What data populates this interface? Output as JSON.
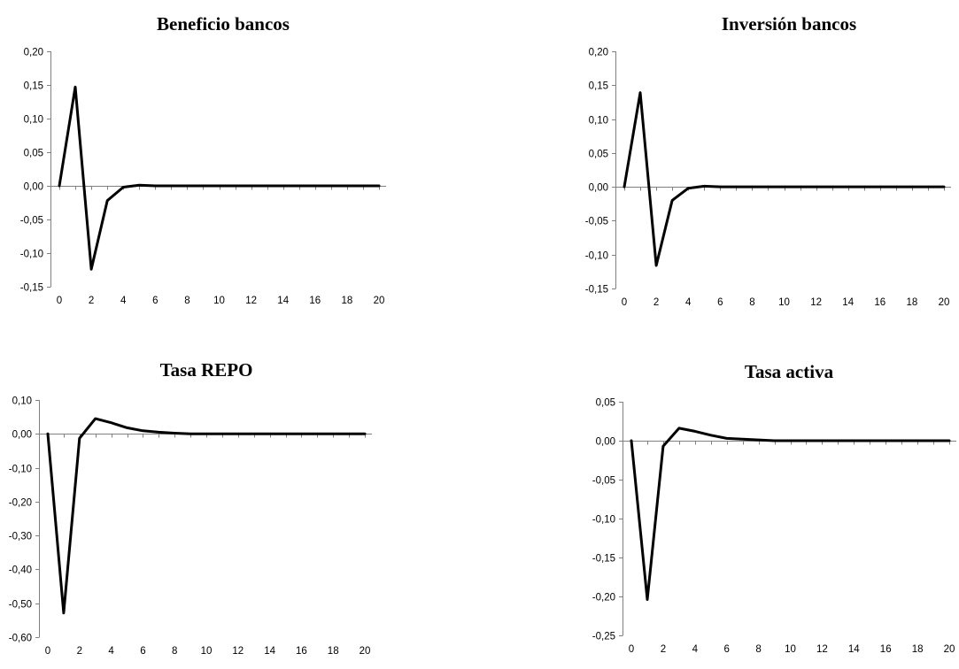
{
  "chart_data": [
    {
      "type": "line",
      "title": "Beneficio bancos",
      "xlabel": "",
      "ylabel": "",
      "x": [
        0,
        1,
        2,
        3,
        4,
        5,
        6,
        7,
        8,
        9,
        10,
        11,
        12,
        13,
        14,
        15,
        16,
        17,
        18,
        19,
        20
      ],
      "x_ticks": [
        0,
        2,
        4,
        6,
        8,
        10,
        12,
        14,
        16,
        18,
        20
      ],
      "ylim": [
        -0.15,
        0.2
      ],
      "y_ticks": [
        "0,20",
        "0,15",
        "0,10",
        "0,05",
        "0,00",
        "-0,05",
        "-0,10",
        "-0,15"
      ],
      "grid": false,
      "series": [
        {
          "values": [
            0,
            0.147,
            -0.124,
            -0.022,
            -0.002,
            0.001,
            0,
            0,
            0,
            0,
            0,
            0,
            0,
            0,
            0,
            0,
            0,
            0,
            0,
            0,
            0
          ]
        }
      ]
    },
    {
      "type": "line",
      "title": "Inversión bancos",
      "xlabel": "",
      "ylabel": "",
      "x": [
        0,
        1,
        2,
        3,
        4,
        5,
        6,
        7,
        8,
        9,
        10,
        11,
        12,
        13,
        14,
        15,
        16,
        17,
        18,
        19,
        20
      ],
      "x_ticks": [
        0,
        2,
        4,
        6,
        8,
        10,
        12,
        14,
        16,
        18,
        20
      ],
      "ylim": [
        -0.15,
        0.2
      ],
      "y_ticks": [
        "0,20",
        "0,15",
        "0,10",
        "0,05",
        "0,00",
        "-0,05",
        "-0,10",
        "-0,15"
      ],
      "grid": false,
      "series": [
        {
          "values": [
            0,
            0.139,
            -0.116,
            -0.02,
            -0.002,
            0.001,
            0,
            0,
            0,
            0,
            0,
            0,
            0,
            0,
            0,
            0,
            0,
            0,
            0,
            0,
            0
          ]
        }
      ]
    },
    {
      "type": "line",
      "title": "Tasa REPO",
      "xlabel": "",
      "ylabel": "",
      "x": [
        0,
        1,
        2,
        3,
        4,
        5,
        6,
        7,
        8,
        9,
        10,
        11,
        12,
        13,
        14,
        15,
        16,
        17,
        18,
        19,
        20
      ],
      "x_ticks": [
        0,
        2,
        4,
        6,
        8,
        10,
        12,
        14,
        16,
        18,
        20
      ],
      "ylim": [
        -0.6,
        0.1
      ],
      "y_ticks": [
        "0,10",
        "0,00",
        "-0,10",
        "-0,20",
        "-0,30",
        "-0,40",
        "-0,50",
        "-0,60"
      ],
      "grid": false,
      "series": [
        {
          "values": [
            0,
            -0.529,
            -0.013,
            0.045,
            0.033,
            0.018,
            0.009,
            0.005,
            0.002,
            0,
            0,
            0,
            0,
            0,
            0,
            0,
            0,
            0,
            0,
            0,
            0
          ]
        }
      ]
    },
    {
      "type": "line",
      "title": "Tasa activa",
      "xlabel": "",
      "ylabel": "",
      "x": [
        0,
        1,
        2,
        3,
        4,
        5,
        6,
        7,
        8,
        9,
        10,
        11,
        12,
        13,
        14,
        15,
        16,
        17,
        18,
        19,
        20
      ],
      "x_ticks": [
        0,
        2,
        4,
        6,
        8,
        10,
        12,
        14,
        16,
        18,
        20
      ],
      "ylim": [
        -0.25,
        0.05
      ],
      "y_ticks": [
        "0,05",
        "0,00",
        "-0,05",
        "-0,10",
        "-0,15",
        "-0,20",
        "-0,25"
      ],
      "grid": false,
      "series": [
        {
          "values": [
            0,
            -0.204,
            -0.007,
            0.016,
            0.012,
            0.007,
            0.003,
            0.002,
            0.001,
            0,
            0,
            0,
            0,
            0,
            0,
            0,
            0,
            0,
            0,
            0,
            0
          ]
        }
      ]
    }
  ]
}
